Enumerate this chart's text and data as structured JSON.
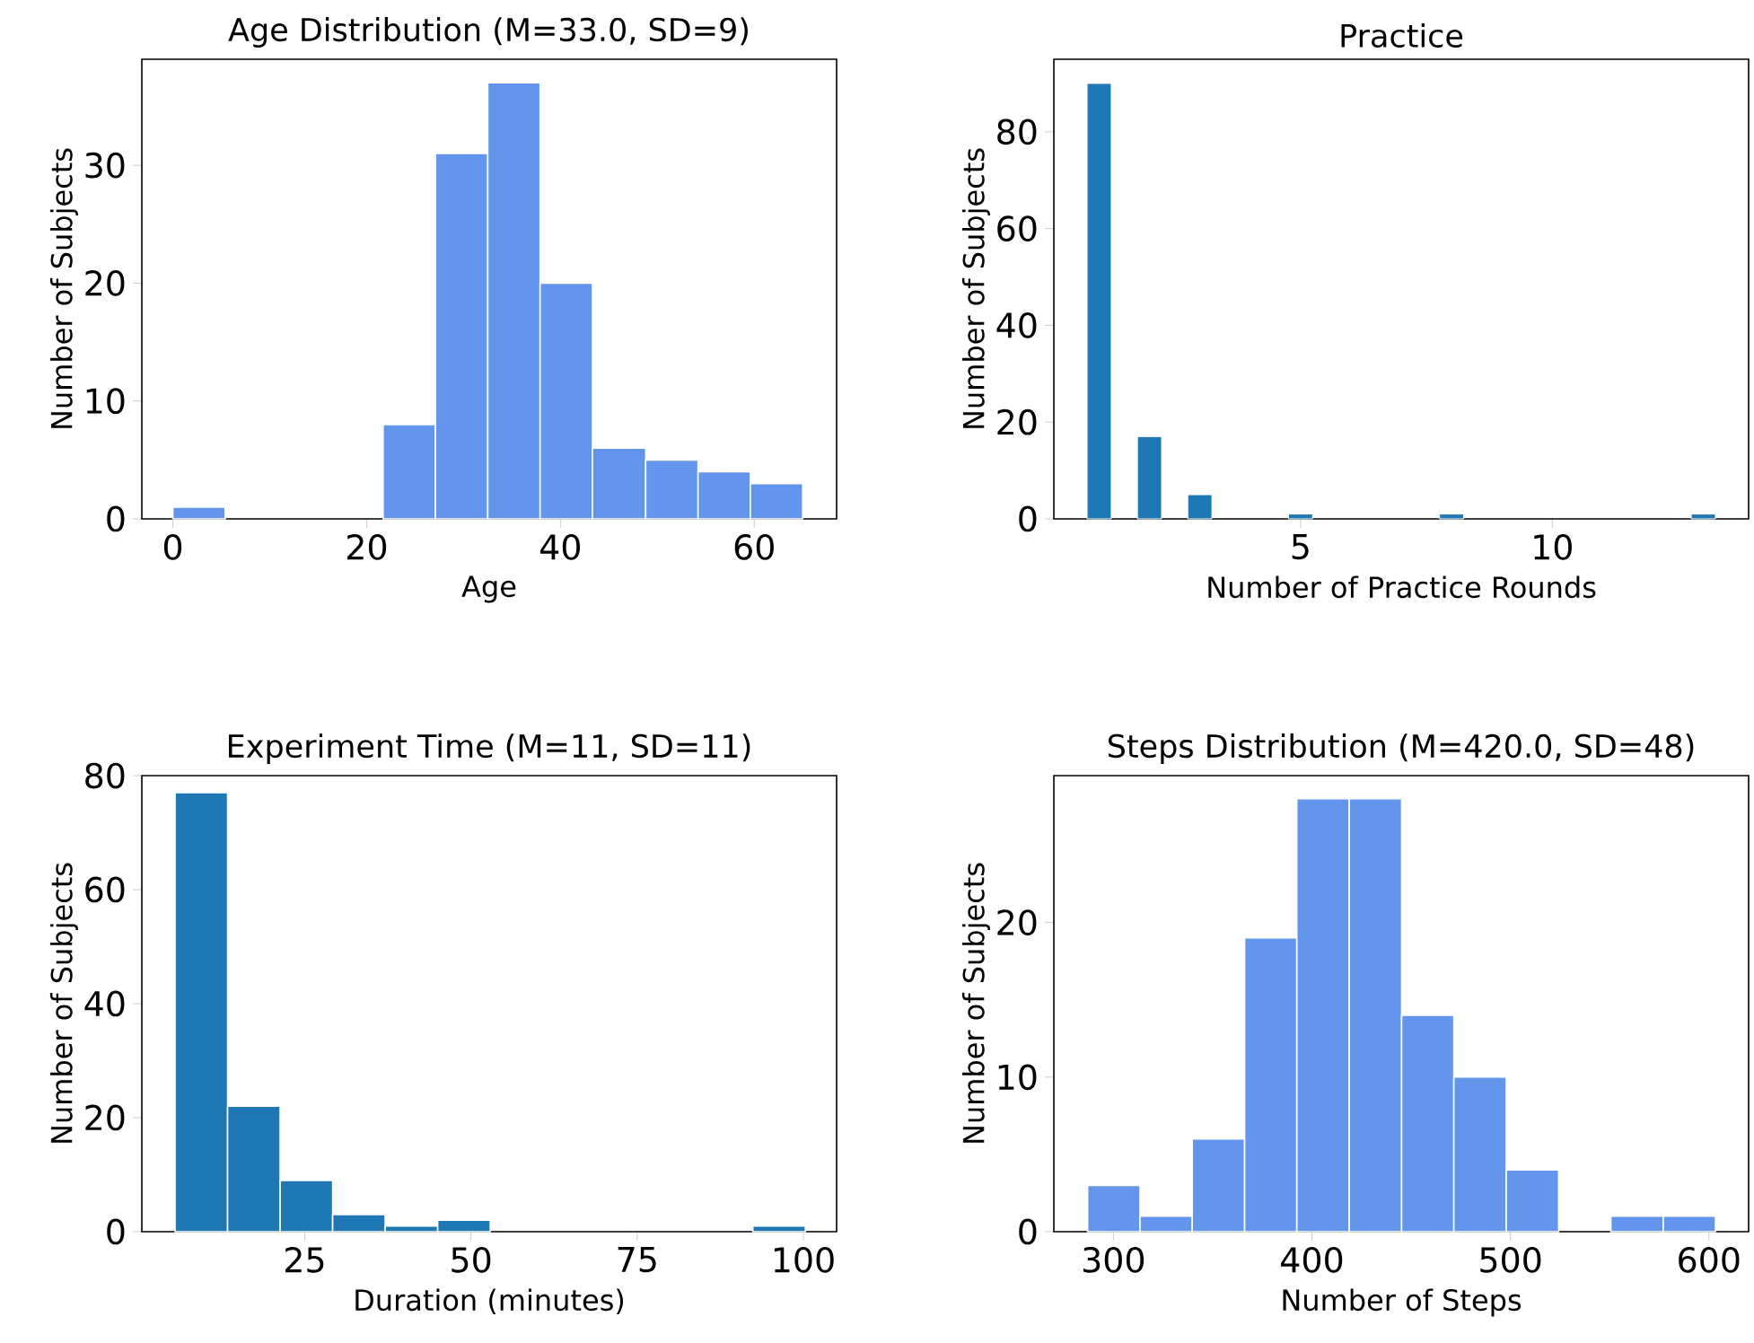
{
  "chart_data": [
    {
      "type": "histogram",
      "title": "Age Distribution (M=33.0, SD=9)",
      "xlabel": "Age",
      "ylabel": "Number of Subjects",
      "color": "#6495ed",
      "bins": [
        0,
        5.4,
        21.7,
        27.1,
        32.5,
        37.9,
        43.3,
        48.8,
        54.2,
        59.6,
        65
      ],
      "values": [
        1,
        0,
        8,
        31,
        37,
        20,
        6,
        5,
        4,
        3
      ],
      "xlim": [
        -3.2,
        68.5
      ],
      "ylim": [
        0,
        39
      ],
      "xticks": [
        0,
        20,
        40,
        60
      ],
      "yticks": [
        0,
        10,
        20,
        30
      ]
    },
    {
      "type": "bar",
      "title": "Practice",
      "xlabel": "Number of Practice Rounds",
      "ylabel": "Number of Subjects",
      "color": "#1f77b4",
      "x": [
        1,
        2,
        3,
        5,
        8,
        13
      ],
      "values": [
        90,
        17,
        5,
        1,
        1,
        1
      ],
      "xlim": [
        0.1,
        13.9
      ],
      "ylim": [
        0,
        95
      ],
      "xticks": [
        5,
        10
      ],
      "yticks": [
        0,
        20,
        40,
        60,
        80
      ]
    },
    {
      "type": "histogram",
      "title": "Experiment Time (M=11, SD=11)",
      "xlabel": "Duration (minutes)",
      "ylabel": "Number of Subjects",
      "color": "#1f77b4",
      "bins": [
        5.5,
        13.4,
        21.3,
        29.2,
        37.1,
        45,
        52.9,
        60.8,
        68.7,
        76.6,
        84.5,
        92.4,
        100.3
      ],
      "values": [
        77,
        22,
        9,
        3,
        1,
        2,
        0,
        0,
        0,
        0,
        0,
        1
      ],
      "xlim": [
        0.5,
        105
      ],
      "ylim": [
        0,
        80
      ],
      "xticks": [
        25,
        50,
        75,
        100
      ],
      "yticks": [
        0,
        20,
        40,
        60,
        80
      ]
    },
    {
      "type": "histogram",
      "title": "Steps Distribution (M=420.0, SD=48)",
      "xlabel": "Number of Steps",
      "ylabel": "Number of Subjects",
      "color": "#6495ed",
      "bins": [
        287,
        313.4,
        339.7,
        366.1,
        392.4,
        418.8,
        445.2,
        471.5,
        497.9,
        524.3,
        550.6,
        577,
        603.3
      ],
      "values": [
        3,
        1,
        6,
        19,
        28,
        28,
        14,
        10,
        4,
        0,
        1,
        1
      ],
      "xlim": [
        270,
        620
      ],
      "ylim": [
        0,
        29.5
      ],
      "xticks": [
        300,
        400,
        500,
        600
      ],
      "yticks": [
        0,
        10,
        20
      ]
    }
  ]
}
